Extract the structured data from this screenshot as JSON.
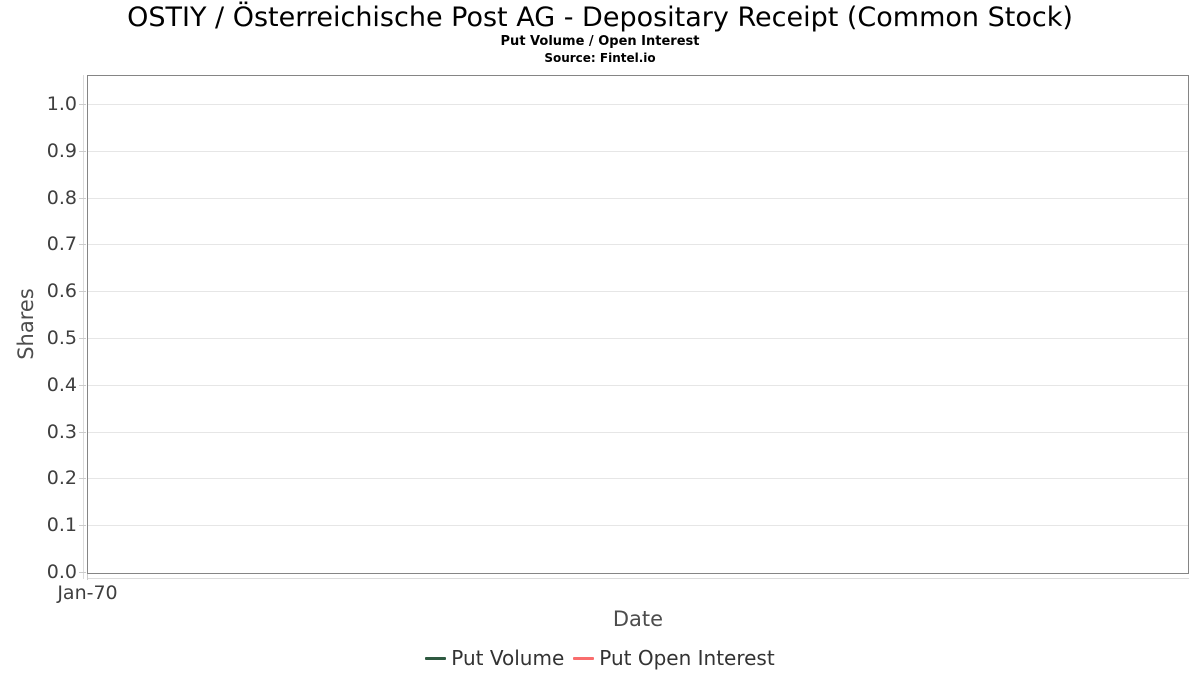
{
  "chart_data": {
    "type": "line",
    "title": "OSTIY / Österreichische Post AG - Depositary Receipt (Common Stock)",
    "subtitle": "Put Volume / Open Interest",
    "source": "Source: Fintel.io",
    "xlabel": "Date",
    "ylabel": "Shares",
    "x_ticks": [
      "Jan-70"
    ],
    "x_tick_positions": [
      0
    ],
    "y_ticks": [
      "0.0",
      "0.1",
      "0.2",
      "0.3",
      "0.4",
      "0.5",
      "0.6",
      "0.7",
      "0.8",
      "0.9",
      "1.0"
    ],
    "ylim": [
      0,
      1.06
    ],
    "grid": "horizontal",
    "legend_position": "bottom",
    "series": [
      {
        "name": "Put Volume",
        "color": "#2e5940",
        "values": []
      },
      {
        "name": "Put Open Interest",
        "color": "#f96d6d",
        "values": []
      }
    ]
  },
  "colors": {
    "background": "#ffffff",
    "plot_border": "#858585",
    "gridline": "#e6e6e6",
    "axis_line": "#dcdcdc",
    "tick_mark": "#cccccc",
    "tick_label": "#3f3f3f",
    "axis_title": "#4d4d4d",
    "legend_text": "#333333",
    "title_text": "#000000"
  }
}
